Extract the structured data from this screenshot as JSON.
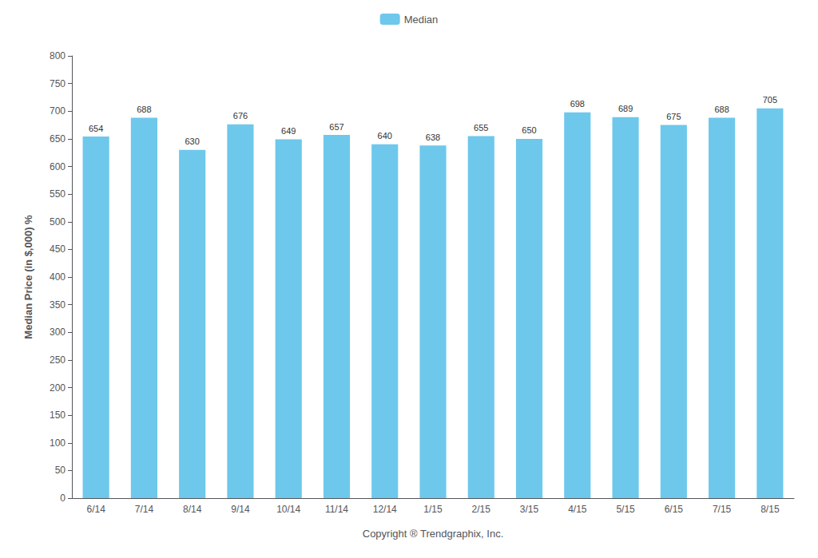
{
  "chart_data": {
    "type": "bar",
    "categories": [
      "6/14",
      "7/14",
      "8/14",
      "9/14",
      "10/14",
      "11/14",
      "12/14",
      "1/15",
      "2/15",
      "3/15",
      "4/15",
      "5/15",
      "6/15",
      "7/15",
      "8/15"
    ],
    "series": [
      {
        "name": "Median",
        "color": "#6DC8EC",
        "values": [
          654,
          688,
          630,
          676,
          649,
          657,
          640,
          638,
          655,
          650,
          698,
          689,
          675,
          688,
          705
        ]
      }
    ],
    "xlabel": "Copyright ® Trendgraphix, Inc.",
    "ylabel": "Median Price (in $,000) %",
    "ylim": [
      0,
      800
    ],
    "yticks": [
      0,
      50,
      100,
      150,
      200,
      250,
      300,
      350,
      400,
      450,
      500,
      550,
      600,
      650,
      700,
      750,
      800
    ],
    "grid": false,
    "legend": "top",
    "data_labels": true
  }
}
